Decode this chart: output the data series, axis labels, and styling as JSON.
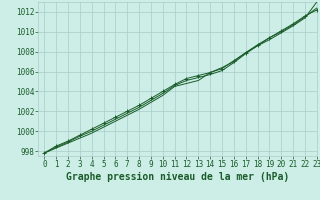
{
  "background_color": "#cceee6",
  "plot_bg_color": "#cceee6",
  "grid_color": "#aacccc",
  "line_color": "#1a5c2a",
  "xlim": [
    -0.5,
    23
  ],
  "ylim": [
    997.5,
    1013.0
  ],
  "yticks": [
    998,
    1000,
    1002,
    1004,
    1006,
    1008,
    1010,
    1012
  ],
  "xticks": [
    0,
    1,
    2,
    3,
    4,
    5,
    6,
    7,
    8,
    9,
    10,
    11,
    12,
    13,
    14,
    15,
    16,
    17,
    18,
    19,
    20,
    21,
    22,
    23
  ],
  "series": [
    [
      997.8,
      998.3,
      998.8,
      999.3,
      999.8,
      1000.4,
      1001.0,
      1001.6,
      1002.2,
      1002.9,
      1003.6,
      1004.5,
      1004.8,
      1005.1,
      1005.9,
      1006.4,
      1007.0,
      1007.9,
      1008.6,
      1009.4,
      1010.0,
      1010.7,
      1011.5,
      1012.4
    ],
    [
      997.8,
      998.5,
      999.0,
      999.6,
      1000.2,
      1000.8,
      1001.4,
      1002.0,
      1002.6,
      1003.3,
      1004.0,
      1004.7,
      1005.3,
      1005.6,
      1005.9,
      1006.3,
      1007.1,
      1007.9,
      1008.7,
      1009.4,
      1010.1,
      1010.8,
      1011.6,
      1012.2
    ],
    [
      997.8,
      998.4,
      998.9,
      999.5,
      1000.0,
      1000.6,
      1001.2,
      1001.8,
      1002.4,
      1003.1,
      1003.8,
      1004.6,
      1005.1,
      1005.4,
      1005.7,
      1006.1,
      1006.9,
      1007.8,
      1008.6,
      1009.2,
      1009.9,
      1010.6,
      1011.4,
      1013.0
    ]
  ],
  "xlabel": "Graphe pression niveau de la mer (hPa)",
  "tick_fontsize": 5.5,
  "xlabel_fontsize": 7.0,
  "tick_color": "#1a5c2a",
  "xlabel_color": "#1a5c2a"
}
